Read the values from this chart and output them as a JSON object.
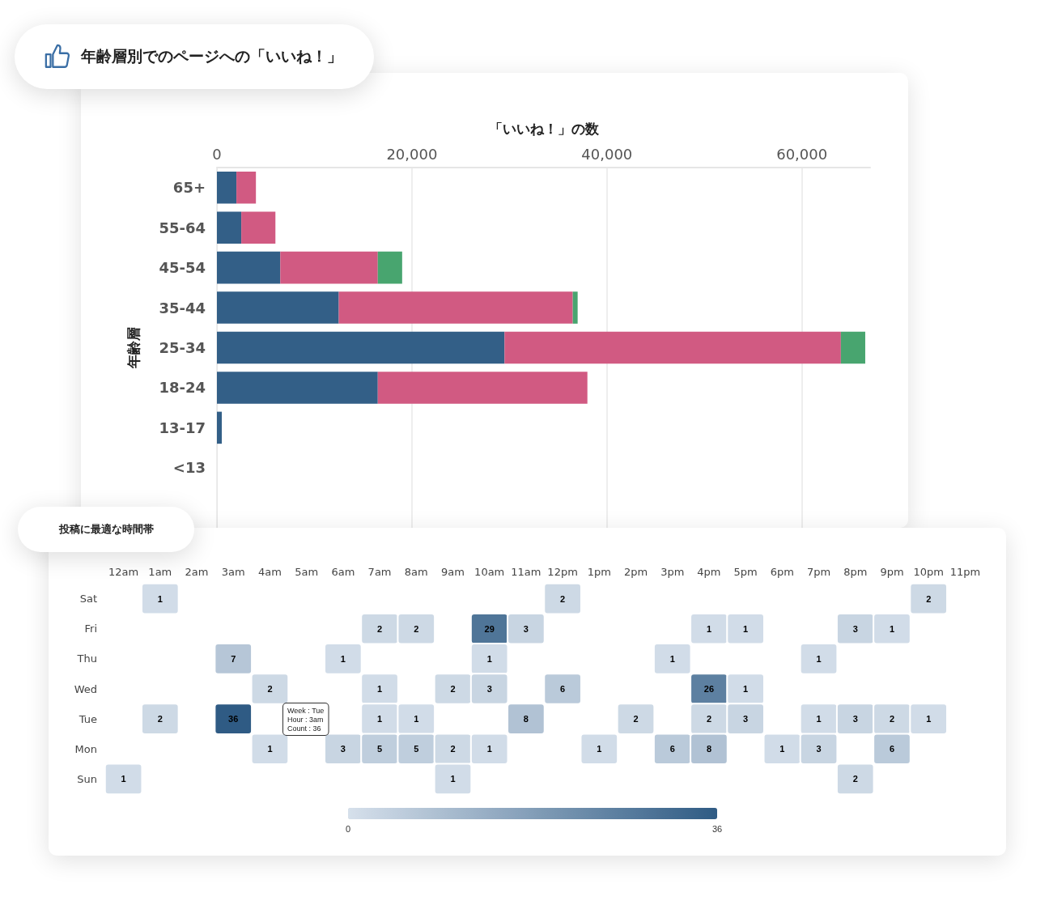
{
  "chart_data": [
    {
      "type": "bar",
      "title": "年齢層別でのページへの「いいね！」",
      "xlabel": "「いいね！」の数",
      "ylabel": "年齢層",
      "orientation": "horizontal",
      "stacked": true,
      "grid": "x",
      "categories": [
        "65+",
        "55-64",
        "45-54",
        "35-44",
        "25-34",
        "18-24",
        "13-17",
        "<13",
        null
      ],
      "series": [
        {
          "color": "#335f87",
          "values": [
            2000,
            2500,
            6500,
            12500,
            29500,
            16500,
            500,
            0,
            0
          ]
        },
        {
          "color": "#d15a82",
          "values": [
            2000,
            3500,
            10000,
            24000,
            34500,
            21500,
            null,
            null,
            null
          ]
        },
        {
          "color": "#48a56f",
          "values": [
            null,
            null,
            2500,
            500,
            2500,
            null,
            null,
            null,
            null
          ]
        }
      ],
      "xlim": [
        0,
        67000
      ],
      "xticks": [
        0,
        {
          "value": 20000,
          "label": "20,000"
        },
        {
          "value": 40000,
          "label": "40,000"
        },
        {
          "value": 60000,
          "label": "60,000"
        }
      ]
    },
    {
      "type": "heatmap",
      "title": "投稿に最適な時間帯",
      "data_labels": true,
      "categories": [
        "12am",
        "1am",
        "2am",
        "3am",
        "4am",
        "5am",
        "6am",
        "7am",
        "8am",
        "9am",
        "10am",
        "11am",
        "12pm",
        "1pm",
        "2pm",
        "3pm",
        "4pm",
        "5pm",
        "6pm",
        "7pm",
        "8pm",
        "9pm",
        "10pm",
        "11pm"
      ],
      "y_categories": [
        "Sat",
        "Fri",
        "Thu",
        "Wed",
        "Tue",
        "Mon",
        "Sun"
      ],
      "cells": [
        [
          null,
          1,
          null,
          null,
          null,
          null,
          null,
          null,
          null,
          null,
          null,
          null,
          2,
          null,
          null,
          null,
          null,
          null,
          null,
          null,
          null,
          null,
          2,
          null
        ],
        [
          null,
          null,
          null,
          null,
          null,
          null,
          null,
          2,
          2,
          null,
          29,
          3,
          null,
          null,
          null,
          null,
          1,
          1,
          null,
          null,
          3,
          1,
          null,
          null
        ],
        [
          null,
          null,
          null,
          7,
          null,
          null,
          1,
          null,
          null,
          null,
          1,
          null,
          null,
          null,
          null,
          1,
          null,
          null,
          null,
          1,
          null,
          null,
          null,
          null
        ],
        [
          null,
          null,
          null,
          null,
          2,
          null,
          null,
          1,
          null,
          2,
          3,
          null,
          6,
          null,
          null,
          null,
          26,
          1,
          null,
          null,
          null,
          null,
          null,
          null
        ],
        [
          null,
          2,
          null,
          36,
          null,
          null,
          null,
          1,
          1,
          null,
          null,
          8,
          null,
          null,
          2,
          null,
          2,
          3,
          null,
          1,
          3,
          2,
          1,
          null
        ],
        [
          null,
          null,
          null,
          null,
          1,
          null,
          3,
          5,
          5,
          2,
          1,
          null,
          null,
          1,
          null,
          6,
          8,
          null,
          1,
          3,
          null,
          6,
          null,
          null
        ],
        [
          1,
          null,
          null,
          null,
          null,
          null,
          null,
          null,
          null,
          1,
          null,
          null,
          null,
          null,
          null,
          null,
          null,
          null,
          null,
          null,
          2,
          null,
          null,
          null
        ]
      ],
      "clim": [
        0,
        36
      ],
      "cticks": [
        0,
        36
      ],
      "annotations": [
        "Week : Tue\nHour : 3am\nCount : 36"
      ]
    }
  ]
}
